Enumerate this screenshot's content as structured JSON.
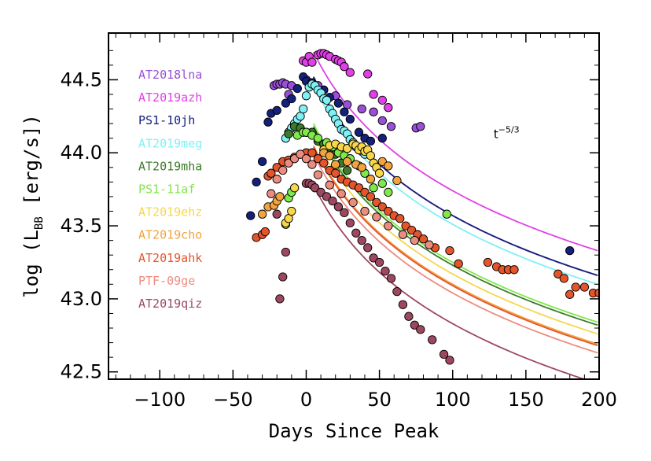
{
  "chart_data": {
    "type": "scatter",
    "xlabel": "Days Since Peak",
    "ylabel": "log (L",
    "ylabel_subscript": "BB",
    "ylabel_suffix": " [erg/s])",
    "xlim": [
      -135,
      200
    ],
    "ylim": [
      42.45,
      44.82
    ],
    "xticks": [
      -100,
      -50,
      0,
      50,
      100,
      150,
      200
    ],
    "xtick_labels": [
      "−100",
      "−50",
      "0",
      "50",
      "100",
      "150",
      "200"
    ],
    "yticks": [
      42.5,
      43.0,
      43.5,
      44.0,
      44.5
    ],
    "ytick_labels": [
      "42.5",
      "43.0",
      "43.5",
      "44.0",
      "44.5"
    ],
    "annotation": {
      "base": "t",
      "exponent": "−5/3",
      "x": 128,
      "y": 44.1
    },
    "legend_position": "top-left",
    "series": [
      {
        "name": "AT2018lna",
        "color": "#9a4fd8",
        "peak": 44.52,
        "x": [
          -22,
          -20,
          -18,
          -16,
          -14,
          -12,
          -10,
          0,
          4,
          8,
          12,
          20,
          28,
          38,
          46,
          52,
          58,
          75,
          78
        ],
        "y": [
          44.46,
          44.47,
          44.47,
          44.48,
          44.47,
          44.4,
          44.46,
          44.5,
          44.48,
          44.46,
          44.43,
          44.39,
          44.33,
          44.3,
          44.28,
          44.22,
          44.18,
          44.17,
          44.18
        ]
      },
      {
        "name": "AT2019azh",
        "color": "#e040e6",
        "peak": 44.69,
        "x": [
          -2,
          0,
          2,
          4,
          8,
          10,
          12,
          14,
          16,
          20,
          22,
          24,
          26,
          30,
          42,
          46,
          52,
          56
        ],
        "y": [
          44.63,
          44.62,
          44.66,
          44.62,
          44.67,
          44.68,
          44.68,
          44.67,
          44.66,
          44.64,
          44.63,
          44.62,
          44.59,
          44.55,
          44.54,
          44.4,
          44.36,
          44.31
        ]
      },
      {
        "name": "PS1-10jh",
        "color": "#14207a",
        "peak": 44.52,
        "x": [
          -38,
          -34,
          -30,
          -26,
          -24,
          -20,
          -14,
          -10,
          -6,
          -2,
          0,
          4,
          12,
          16,
          22,
          26,
          30,
          36,
          40,
          44,
          52,
          180
        ],
        "y": [
          43.57,
          43.8,
          43.94,
          44.21,
          44.27,
          44.29,
          44.34,
          44.37,
          44.44,
          44.52,
          44.49,
          44.48,
          44.43,
          44.38,
          44.34,
          44.28,
          44.23,
          44.14,
          44.1,
          44.08,
          44.1,
          43.33
        ]
      },
      {
        "name": "AT2019meg",
        "color": "#7ff0f4",
        "peak": 44.46,
        "x": [
          -14,
          -12,
          -10,
          -8,
          -6,
          -4,
          -2,
          0,
          2,
          4,
          6,
          8,
          10,
          12,
          14,
          16,
          18,
          20,
          22,
          24,
          26,
          28,
          30,
          32,
          34,
          36,
          38,
          40
        ],
        "y": [
          44.1,
          44.14,
          44.17,
          44.2,
          44.23,
          44.25,
          44.3,
          44.39,
          44.45,
          44.47,
          44.46,
          44.43,
          44.41,
          44.37,
          44.36,
          44.3,
          44.27,
          44.23,
          44.2,
          44.16,
          44.15,
          44.13,
          44.09,
          44.07,
          44.04,
          44.02,
          44.01,
          43.99
        ]
      },
      {
        "name": "AT2019mha",
        "color": "#3d7a2a",
        "peak": 44.18,
        "x": [
          -12,
          -8,
          -4,
          0,
          4,
          8,
          12,
          16,
          20,
          24,
          28
        ],
        "y": [
          44.13,
          44.18,
          44.17,
          44.14,
          44.14,
          44.08,
          44.06,
          44.02,
          43.99,
          43.93,
          43.88
        ]
      },
      {
        "name": "PS1-11af",
        "color": "#7fe84a",
        "peak": 44.2,
        "x": [
          -14,
          -12,
          -10,
          -6,
          -2,
          0,
          4,
          8,
          14,
          18,
          22,
          26,
          30,
          36,
          40,
          46,
          52,
          56,
          96
        ],
        "y": [
          43.51,
          43.69,
          43.73,
          44.12,
          44.14,
          44.14,
          44.12,
          44.1,
          44.07,
          44.04,
          44.0,
          43.98,
          43.96,
          43.91,
          43.86,
          43.76,
          43.79,
          43.73,
          43.58
        ]
      },
      {
        "name": "AT2019ehz",
        "color": "#f7d64a",
        "peak": 44.12,
        "x": [
          -14,
          -12,
          -10,
          -8,
          12,
          16,
          20,
          24,
          28,
          32,
          34,
          36,
          38,
          40,
          42,
          44,
          46,
          48,
          50
        ],
        "y": [
          43.52,
          43.55,
          43.6,
          43.76,
          44.02,
          44.05,
          44.06,
          44.04,
          44.03,
          44.06,
          44.05,
          44.02,
          44.04,
          44.01,
          44.02,
          43.98,
          43.93,
          43.9,
          43.86
        ]
      },
      {
        "name": "AT2019cho",
        "color": "#f2a33d",
        "peak": 44.05,
        "x": [
          -30,
          -26,
          -22,
          -20,
          -18,
          12,
          16,
          20,
          28,
          34,
          38,
          44,
          52,
          56,
          62
        ],
        "y": [
          43.58,
          43.63,
          43.64,
          43.67,
          43.7,
          44.0,
          43.98,
          43.92,
          43.94,
          43.92,
          43.9,
          43.82,
          43.94,
          43.91,
          43.81
        ]
      },
      {
        "name": "AT2019ahk",
        "color": "#e4552c",
        "peak": 44.04,
        "x": [
          -34,
          -30,
          -28,
          -26,
          -24,
          -20,
          -16,
          -12,
          -8,
          -4,
          0,
          4,
          8,
          12,
          16,
          20,
          24,
          28,
          32,
          36,
          40,
          44,
          48,
          52,
          56,
          60,
          64,
          68,
          72,
          76,
          80,
          88,
          98,
          104,
          124,
          130,
          134,
          138,
          142,
          172,
          176,
          180,
          184,
          190,
          196,
          200
        ],
        "y": [
          43.42,
          43.44,
          43.46,
          43.84,
          43.86,
          43.9,
          43.94,
          43.95,
          43.97,
          43.99,
          44.0,
          44.0,
          43.96,
          43.93,
          43.88,
          43.86,
          43.82,
          43.8,
          43.78,
          43.76,
          43.73,
          43.7,
          43.66,
          43.63,
          43.6,
          43.57,
          43.55,
          43.5,
          43.47,
          43.44,
          43.41,
          43.35,
          43.33,
          43.24,
          43.25,
          43.22,
          43.2,
          43.2,
          43.2,
          43.17,
          43.14,
          43.03,
          43.08,
          43.08,
          43.04,
          43.04
        ]
      },
      {
        "name": "PTF-09ge",
        "color": "#ec8c80",
        "peak": 43.99,
        "x": [
          -24,
          -20,
          -16,
          -12,
          -8,
          -4,
          0,
          4,
          8,
          16,
          24,
          32,
          40,
          48,
          56,
          66,
          74,
          84
        ],
        "y": [
          43.72,
          43.82,
          43.88,
          43.93,
          43.96,
          43.99,
          43.96,
          43.92,
          43.85,
          43.78,
          43.72,
          43.66,
          43.6,
          43.56,
          43.5,
          43.44,
          43.4,
          43.37
        ]
      },
      {
        "name": "AT2019qiz",
        "color": "#9e4860",
        "peak": 43.78,
        "x": [
          -20,
          -18,
          -16,
          -14,
          0,
          2,
          4,
          6,
          10,
          14,
          18,
          22,
          26,
          30,
          34,
          38,
          42,
          46,
          50,
          54,
          58,
          62,
          66,
          70,
          74,
          78,
          86,
          94,
          98
        ],
        "y": [
          43.58,
          43.0,
          43.15,
          43.32,
          43.79,
          43.79,
          43.78,
          43.76,
          43.73,
          43.7,
          43.67,
          43.63,
          43.59,
          43.52,
          43.45,
          43.4,
          43.35,
          43.28,
          43.25,
          43.19,
          43.14,
          43.05,
          42.96,
          42.88,
          42.82,
          42.79,
          42.72,
          42.62,
          42.58
        ]
      }
    ]
  }
}
